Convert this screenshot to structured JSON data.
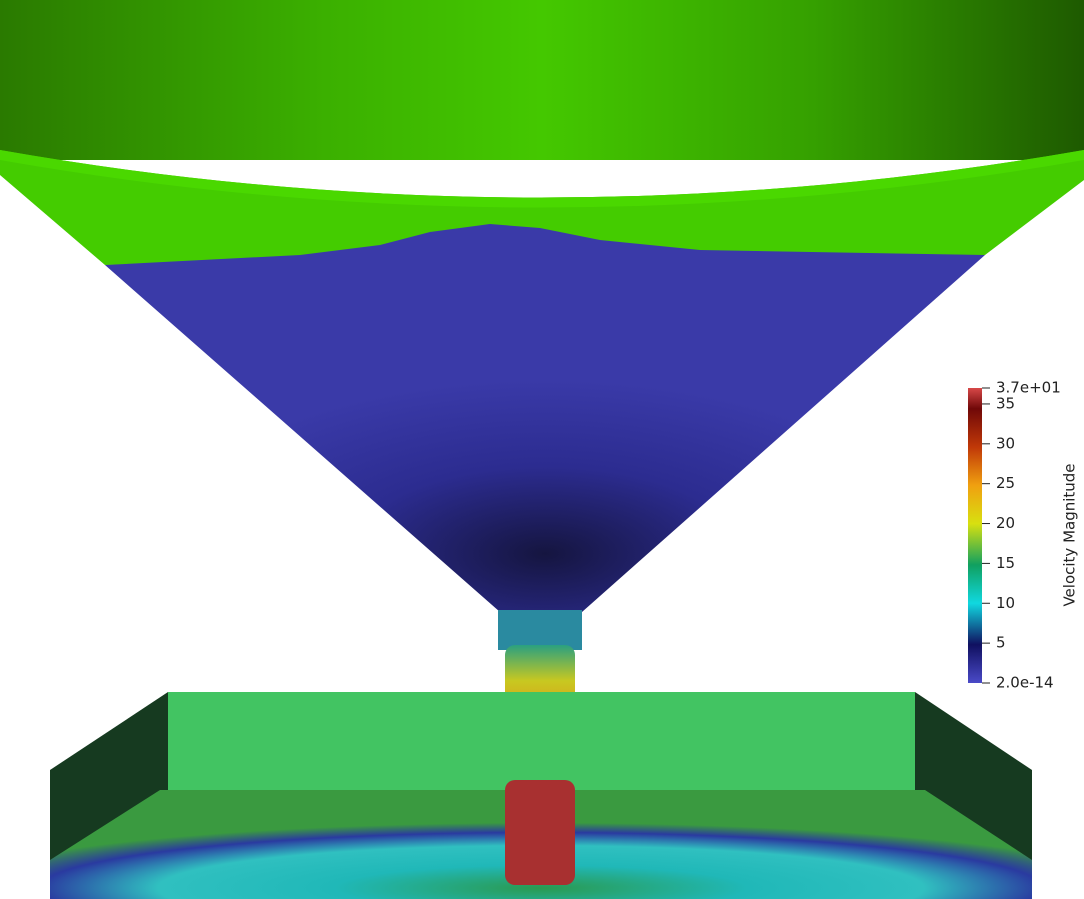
{
  "colorbar": {
    "title": "Velocity Magnitude",
    "min": {
      "value": 2e-14,
      "label": "2.0e-14"
    },
    "max": {
      "value": 37,
      "label": "3.7e+01"
    },
    "ticks": [
      5,
      10,
      15,
      20,
      25,
      30,
      35
    ]
  }
}
